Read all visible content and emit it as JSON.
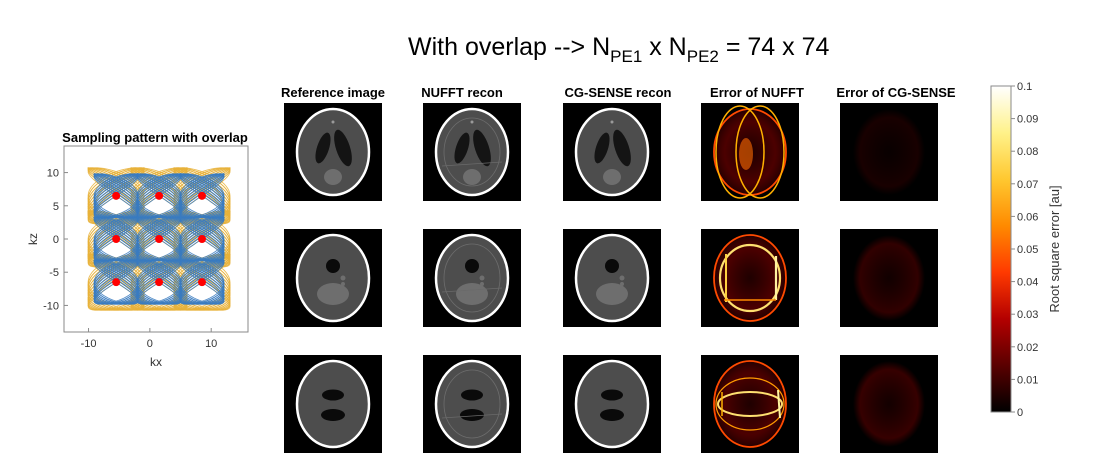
{
  "main_title": {
    "prefix": "With overlap --> N",
    "sub1": "PE1",
    "mid": " x N",
    "sub2": "PE2",
    "suffix": " = 74 x 74"
  },
  "column_titles": [
    "Reference image",
    "NUFFT recon",
    "CG-SENSE recon",
    "Error of NUFFT",
    "Error of CG-SENSE"
  ],
  "colors": {
    "trajectory_blue": "#3a7bbf",
    "trajectory_yellow": "#e8b13a",
    "sample_red": "#ff0000",
    "image_background": "#000000"
  },
  "chart_data": [
    {
      "type": "scatter",
      "title": "Sampling pattern with overlap",
      "xlabel": "kx",
      "ylabel": "kz",
      "xlim": [
        -14,
        16
      ],
      "ylim": [
        -14,
        14
      ],
      "xticks": [
        -10,
        0,
        10
      ],
      "yticks": [
        -10,
        -5,
        0,
        5,
        10
      ],
      "grid": false,
      "series": [
        {
          "points": [
            [
              -5.5,
              6.5
            ],
            [
              1.5,
              6.5
            ],
            [
              8.5,
              6.5
            ],
            [
              -5.5,
              0
            ],
            [
              1.5,
              0
            ],
            [
              8.5,
              0
            ],
            [
              -5.5,
              -6.5
            ],
            [
              1.5,
              -6.5
            ],
            [
              8.5,
              -6.5
            ]
          ]
        }
      ]
    },
    {
      "type": "heatmap",
      "rows": 3,
      "columns": [
        "Reference image",
        "NUFFT recon",
        "CG-SENSE recon",
        "Error of NUFFT",
        "Error of CG-SENSE"
      ]
    },
    {
      "type": "heatmap",
      "ylabel": "Root square error [au]",
      "colormap": [
        "#000000",
        "#5a0000",
        "#b40000",
        "#ff3a00",
        "#ff8a00",
        "#ffc830",
        "#fff28a",
        "#ffffff"
      ],
      "clim": [
        0,
        0.1
      ],
      "ticks": [
        "0",
        "0.01",
        "0.02",
        "0.03",
        "0.04",
        "0.05",
        "0.06",
        "0.07",
        "0.08",
        "0.09",
        "0.1"
      ]
    }
  ]
}
